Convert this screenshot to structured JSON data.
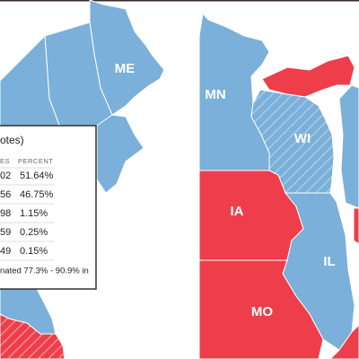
{
  "map": {
    "states": [
      {
        "label": "ME"
      },
      {
        "label": "MN"
      },
      {
        "label": "WI"
      },
      {
        "label": "IA"
      },
      {
        "label": "IL"
      },
      {
        "label": "MO"
      }
    ],
    "tooltip": {
      "title": "otes)",
      "columns": [
        "ES",
        "PERCENT"
      ],
      "rows": [
        [
          "02",
          "51.64%"
        ],
        [
          "56",
          "46.75%"
        ],
        [
          "98",
          "1.15%"
        ],
        [
          "59",
          "0.25%"
        ],
        [
          "49",
          "0.15%"
        ]
      ],
      "footer": "nated 77.3% - 90.9% in"
    }
  }
}
